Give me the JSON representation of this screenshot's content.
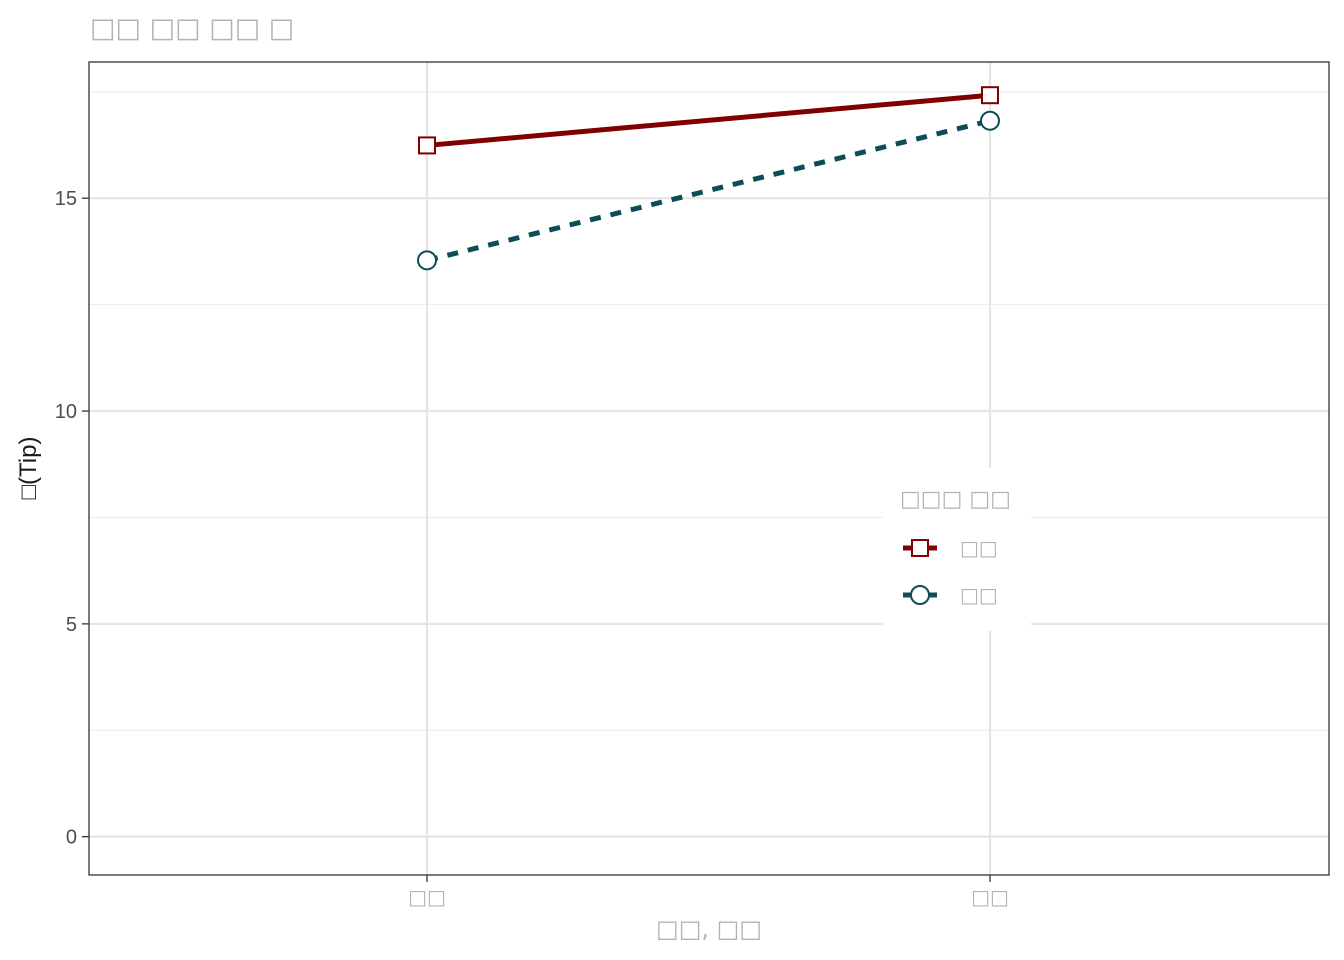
{
  "chart_data": {
    "type": "line",
    "title": "□□ □□ □□ □",
    "xlabel": "□□, □□",
    "ylabel": "□(Tip)",
    "categories": [
      "□□",
      "□□"
    ],
    "ylim": [
      -0.9,
      18.2
    ],
    "yticks": [
      0,
      5,
      10,
      15
    ],
    "grid": true,
    "legend": {
      "title": "□□□ □□",
      "position": "right-center"
    },
    "series": [
      {
        "name": "□□",
        "values": [
          16.24,
          17.42
        ],
        "color": "#800000",
        "linestyle": "solid",
        "marker": "square"
      },
      {
        "name": "□□",
        "values": [
          13.54,
          16.82
        ],
        "color": "#0c4d57",
        "linestyle": "dashed",
        "marker": "circle"
      }
    ]
  }
}
